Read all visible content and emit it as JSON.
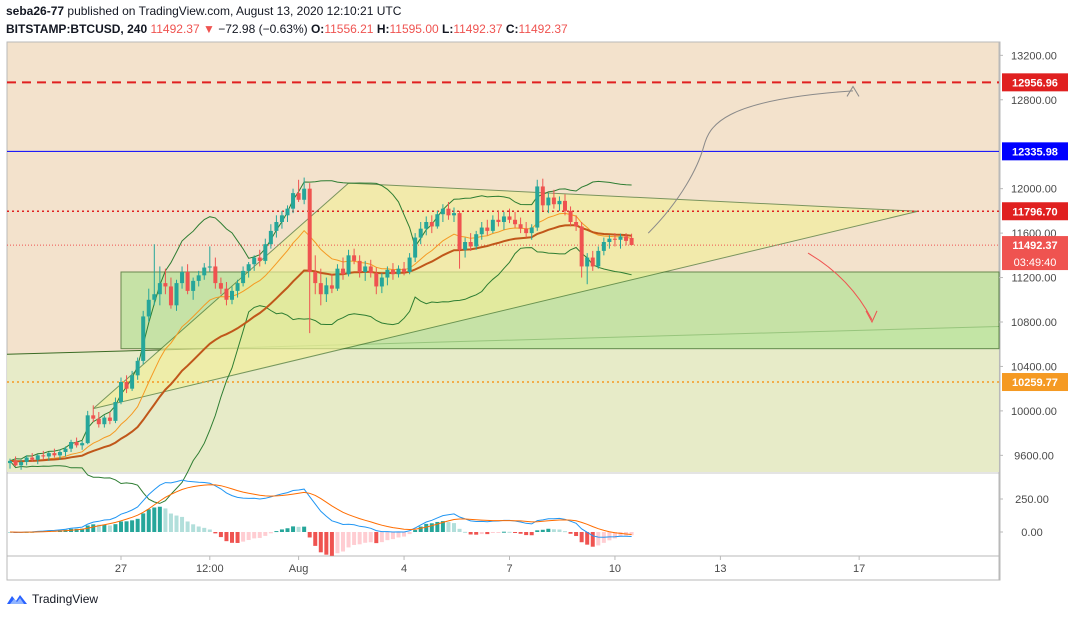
{
  "header": {
    "author": "seba26-77",
    "published": "published on TradingView.com, August 13, 2020 12:10:21 UTC",
    "symbol": "BITSTAMP:BTCUSD, 240",
    "last": "11492.37",
    "change": "−72.98 (−0.63%)",
    "o_label": "O:",
    "o": "11556.21",
    "h_label": "H:",
    "h": "11595.00",
    "l_label": "L:",
    "l": "11492.37",
    "c_label": "C:",
    "c": "11492.37"
  },
  "footer": {
    "brand": "TradingView"
  },
  "colors": {
    "up": "#26a69a",
    "down": "#ef5350",
    "blue": "#0000ff",
    "red_line": "#e02020",
    "orange": "#f59a23",
    "ema": "#c0571a",
    "triangle": "#f2ef9a",
    "green_box": "#b7e39a"
  },
  "chart_data": {
    "type": "candlestick",
    "symbol": "BITSTAMP:BTCUSD",
    "timeframe": "240",
    "ylim": [
      9450,
      13320
    ],
    "y_ticks": [
      {
        "value": 13200,
        "label": "13200.00"
      },
      {
        "value": 12800,
        "label": "12800.00"
      },
      {
        "value": 12000,
        "label": "12000.00"
      },
      {
        "value": 11600,
        "label": "11600.00"
      },
      {
        "value": 11200,
        "label": "11200.00"
      },
      {
        "value": 10800,
        "label": "10800.00"
      },
      {
        "value": 10400,
        "label": "10400.00"
      },
      {
        "value": 10000,
        "label": "10000.00"
      },
      {
        "value": 9600,
        "label": "9600.00"
      }
    ],
    "x_ticks": [
      {
        "bar": 20,
        "label": "27"
      },
      {
        "bar": 36,
        "label": "12:00"
      },
      {
        "bar": 52,
        "label": "Aug"
      },
      {
        "bar": 71,
        "label": "4"
      },
      {
        "bar": 90,
        "label": "7"
      },
      {
        "bar": 109,
        "label": "10"
      },
      {
        "bar": 128,
        "label": "13"
      },
      {
        "bar": 153,
        "label": "17"
      }
    ],
    "price_labels": [
      {
        "value": 12956.96,
        "label": "12956.96",
        "color": "#e02020",
        "style": "dashed"
      },
      {
        "value": 12335.98,
        "label": "12335.98",
        "color": "#0000ff",
        "style": "solid"
      },
      {
        "value": 11796.7,
        "label": "11796.70",
        "color": "#e02020",
        "style": "dotted"
      },
      {
        "value": 11492.37,
        "label": "11492.37",
        "color": "#ef5350",
        "style": "last",
        "extra": "03:49:40"
      },
      {
        "value": 10259.77,
        "label": "10259.77",
        "color": "#f59a23",
        "style": "dotted"
      }
    ],
    "candles": [
      {
        "o": 9530,
        "h": 9570,
        "l": 9480,
        "c": 9550
      },
      {
        "o": 9550,
        "h": 9590,
        "l": 9500,
        "c": 9510
      },
      {
        "o": 9510,
        "h": 9560,
        "l": 9470,
        "c": 9540
      },
      {
        "o": 9540,
        "h": 9600,
        "l": 9510,
        "c": 9580
      },
      {
        "o": 9580,
        "h": 9620,
        "l": 9540,
        "c": 9560
      },
      {
        "o": 9560,
        "h": 9610,
        "l": 9520,
        "c": 9600
      },
      {
        "o": 9600,
        "h": 9640,
        "l": 9560,
        "c": 9590
      },
      {
        "o": 9590,
        "h": 9630,
        "l": 9550,
        "c": 9620
      },
      {
        "o": 9620,
        "h": 9660,
        "l": 9580,
        "c": 9600
      },
      {
        "o": 9600,
        "h": 9650,
        "l": 9560,
        "c": 9630
      },
      {
        "o": 9630,
        "h": 9680,
        "l": 9590,
        "c": 9660
      },
      {
        "o": 9660,
        "h": 9740,
        "l": 9630,
        "c": 9720
      },
      {
        "o": 9720,
        "h": 9760,
        "l": 9670,
        "c": 9690
      },
      {
        "o": 9690,
        "h": 9730,
        "l": 9650,
        "c": 9710
      },
      {
        "o": 9710,
        "h": 10000,
        "l": 9700,
        "c": 9960
      },
      {
        "o": 9960,
        "h": 10050,
        "l": 9900,
        "c": 9930
      },
      {
        "o": 9930,
        "h": 9990,
        "l": 9850,
        "c": 9880
      },
      {
        "o": 9880,
        "h": 9960,
        "l": 9850,
        "c": 9940
      },
      {
        "o": 9940,
        "h": 9990,
        "l": 9880,
        "c": 9910
      },
      {
        "o": 9910,
        "h": 10120,
        "l": 9890,
        "c": 10080
      },
      {
        "o": 10080,
        "h": 10300,
        "l": 10060,
        "c": 10260
      },
      {
        "o": 10260,
        "h": 10320,
        "l": 10160,
        "c": 10200
      },
      {
        "o": 10200,
        "h": 10360,
        "l": 10180,
        "c": 10320
      },
      {
        "o": 10320,
        "h": 10480,
        "l": 10280,
        "c": 10450
      },
      {
        "o": 10450,
        "h": 10900,
        "l": 10420,
        "c": 10850
      },
      {
        "o": 10850,
        "h": 11100,
        "l": 10800,
        "c": 11000
      },
      {
        "o": 11000,
        "h": 11500,
        "l": 10950,
        "c": 11050
      },
      {
        "o": 11050,
        "h": 11300,
        "l": 10950,
        "c": 11150
      },
      {
        "o": 11150,
        "h": 11280,
        "l": 11050,
        "c": 11120
      },
      {
        "o": 11120,
        "h": 11200,
        "l": 10920,
        "c": 10950
      },
      {
        "o": 10950,
        "h": 11180,
        "l": 10900,
        "c": 11150
      },
      {
        "o": 11150,
        "h": 11300,
        "l": 11100,
        "c": 11250
      },
      {
        "o": 11250,
        "h": 11320,
        "l": 11050,
        "c": 11080
      },
      {
        "o": 11080,
        "h": 11200,
        "l": 11000,
        "c": 11170
      },
      {
        "o": 11170,
        "h": 11260,
        "l": 11120,
        "c": 11220
      },
      {
        "o": 11220,
        "h": 11330,
        "l": 11180,
        "c": 11290
      },
      {
        "o": 11290,
        "h": 11480,
        "l": 11250,
        "c": 11300
      },
      {
        "o": 11300,
        "h": 11380,
        "l": 11100,
        "c": 11150
      },
      {
        "o": 11150,
        "h": 11200,
        "l": 11050,
        "c": 11100
      },
      {
        "o": 11100,
        "h": 11160,
        "l": 10950,
        "c": 11000
      },
      {
        "o": 11000,
        "h": 11120,
        "l": 10960,
        "c": 11080
      },
      {
        "o": 11080,
        "h": 11180,
        "l": 11020,
        "c": 11150
      },
      {
        "o": 11150,
        "h": 11300,
        "l": 11120,
        "c": 11260
      },
      {
        "o": 11260,
        "h": 11340,
        "l": 11200,
        "c": 11320
      },
      {
        "o": 11320,
        "h": 11400,
        "l": 11260,
        "c": 11380
      },
      {
        "o": 11380,
        "h": 11450,
        "l": 11300,
        "c": 11350
      },
      {
        "o": 11350,
        "h": 11550,
        "l": 11320,
        "c": 11500
      },
      {
        "o": 11500,
        "h": 11680,
        "l": 11460,
        "c": 11620
      },
      {
        "o": 11620,
        "h": 11760,
        "l": 11560,
        "c": 11700
      },
      {
        "o": 11700,
        "h": 11800,
        "l": 11640,
        "c": 11760
      },
      {
        "o": 11760,
        "h": 11850,
        "l": 11700,
        "c": 11820
      },
      {
        "o": 11820,
        "h": 12000,
        "l": 11780,
        "c": 11960
      },
      {
        "o": 11960,
        "h": 12080,
        "l": 11880,
        "c": 11900
      },
      {
        "o": 11900,
        "h": 12100,
        "l": 11860,
        "c": 12000
      },
      {
        "o": 12000,
        "h": 12050,
        "l": 10700,
        "c": 11250
      },
      {
        "o": 11250,
        "h": 11400,
        "l": 11050,
        "c": 11150
      },
      {
        "o": 11150,
        "h": 11280,
        "l": 10950,
        "c": 11050
      },
      {
        "o": 11050,
        "h": 11200,
        "l": 10980,
        "c": 11130
      },
      {
        "o": 11130,
        "h": 11230,
        "l": 11060,
        "c": 11100
      },
      {
        "o": 11100,
        "h": 11320,
        "l": 11080,
        "c": 11280
      },
      {
        "o": 11280,
        "h": 11380,
        "l": 11180,
        "c": 11230
      },
      {
        "o": 11230,
        "h": 11450,
        "l": 11210,
        "c": 11400
      },
      {
        "o": 11400,
        "h": 11460,
        "l": 11320,
        "c": 11350
      },
      {
        "o": 11350,
        "h": 11400,
        "l": 11200,
        "c": 11250
      },
      {
        "o": 11250,
        "h": 11350,
        "l": 11170,
        "c": 11300
      },
      {
        "o": 11300,
        "h": 11360,
        "l": 11200,
        "c": 11240
      },
      {
        "o": 11240,
        "h": 11290,
        "l": 11050,
        "c": 11120
      },
      {
        "o": 11120,
        "h": 11240,
        "l": 11060,
        "c": 11200
      },
      {
        "o": 11200,
        "h": 11300,
        "l": 11130,
        "c": 11270
      },
      {
        "o": 11270,
        "h": 11330,
        "l": 11180,
        "c": 11230
      },
      {
        "o": 11230,
        "h": 11310,
        "l": 11200,
        "c": 11280
      },
      {
        "o": 11280,
        "h": 11340,
        "l": 11220,
        "c": 11250
      },
      {
        "o": 11250,
        "h": 11420,
        "l": 11230,
        "c": 11380
      },
      {
        "o": 11380,
        "h": 11600,
        "l": 11340,
        "c": 11560
      },
      {
        "o": 11560,
        "h": 11700,
        "l": 11500,
        "c": 11640
      },
      {
        "o": 11640,
        "h": 11750,
        "l": 11580,
        "c": 11700
      },
      {
        "o": 11700,
        "h": 11760,
        "l": 11600,
        "c": 11660
      },
      {
        "o": 11660,
        "h": 11800,
        "l": 11640,
        "c": 11770
      },
      {
        "o": 11770,
        "h": 11860,
        "l": 11700,
        "c": 11820
      },
      {
        "o": 11820,
        "h": 11880,
        "l": 11720,
        "c": 11760
      },
      {
        "o": 11760,
        "h": 11830,
        "l": 11700,
        "c": 11780
      },
      {
        "o": 11780,
        "h": 11800,
        "l": 11280,
        "c": 11450
      },
      {
        "o": 11450,
        "h": 11560,
        "l": 11380,
        "c": 11520
      },
      {
        "o": 11520,
        "h": 11600,
        "l": 11440,
        "c": 11480
      },
      {
        "o": 11480,
        "h": 11620,
        "l": 11450,
        "c": 11590
      },
      {
        "o": 11590,
        "h": 11700,
        "l": 11540,
        "c": 11650
      },
      {
        "o": 11650,
        "h": 11720,
        "l": 11580,
        "c": 11620
      },
      {
        "o": 11620,
        "h": 11760,
        "l": 11600,
        "c": 11720
      },
      {
        "o": 11720,
        "h": 11800,
        "l": 11660,
        "c": 11700
      },
      {
        "o": 11700,
        "h": 11790,
        "l": 11630,
        "c": 11750
      },
      {
        "o": 11750,
        "h": 11820,
        "l": 11690,
        "c": 11720
      },
      {
        "o": 11720,
        "h": 11790,
        "l": 11650,
        "c": 11680
      },
      {
        "o": 11680,
        "h": 11740,
        "l": 11600,
        "c": 11640
      },
      {
        "o": 11640,
        "h": 11700,
        "l": 11560,
        "c": 11600
      },
      {
        "o": 11600,
        "h": 11680,
        "l": 11540,
        "c": 11650
      },
      {
        "o": 11650,
        "h": 12080,
        "l": 11620,
        "c": 12020
      },
      {
        "o": 12020,
        "h": 12090,
        "l": 11800,
        "c": 11850
      },
      {
        "o": 11850,
        "h": 11960,
        "l": 11780,
        "c": 11920
      },
      {
        "o": 11920,
        "h": 11990,
        "l": 11820,
        "c": 11860
      },
      {
        "o": 11860,
        "h": 11930,
        "l": 11800,
        "c": 11890
      },
      {
        "o": 11890,
        "h": 11950,
        "l": 11760,
        "c": 11800
      },
      {
        "o": 11800,
        "h": 11840,
        "l": 11660,
        "c": 11700
      },
      {
        "o": 11700,
        "h": 11760,
        "l": 11620,
        "c": 11660
      },
      {
        "o": 11660,
        "h": 11700,
        "l": 11200,
        "c": 11300
      },
      {
        "o": 11300,
        "h": 11420,
        "l": 11140,
        "c": 11380
      },
      {
        "o": 11380,
        "h": 11440,
        "l": 11260,
        "c": 11300
      },
      {
        "o": 11300,
        "h": 11480,
        "l": 11280,
        "c": 11440
      },
      {
        "o": 11440,
        "h": 11560,
        "l": 11400,
        "c": 11520
      },
      {
        "o": 11520,
        "h": 11580,
        "l": 11460,
        "c": 11550
      },
      {
        "o": 11550,
        "h": 11600,
        "l": 11480,
        "c": 11540
      },
      {
        "o": 11540,
        "h": 11595,
        "l": 11460,
        "c": 11570
      },
      {
        "o": 11570,
        "h": 11600,
        "l": 11490,
        "c": 11530
      },
      {
        "o": 11556.21,
        "h": 11595,
        "l": 11492.37,
        "c": 11492.37
      }
    ],
    "indicators": {
      "bollinger_bands": "green outline",
      "ema": "brown",
      "sma": "orange",
      "macd": {
        "y_ticks": [
          {
            "value": 250,
            "label": "250.00"
          },
          {
            "value": 0,
            "label": "0.00"
          }
        ]
      }
    }
  }
}
